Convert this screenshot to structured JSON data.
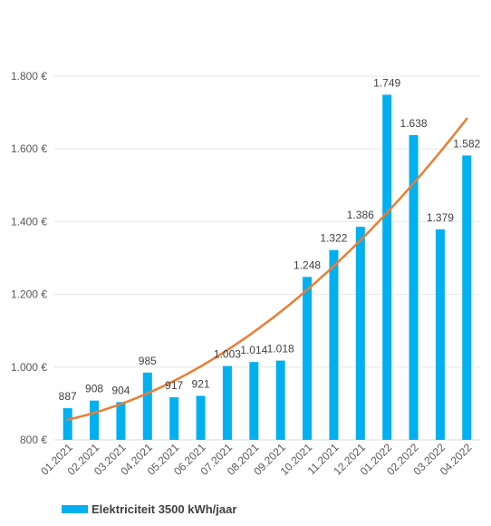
{
  "chart_data": {
    "type": "bar",
    "categories": [
      "01.2021",
      "02.2021",
      "03.2021",
      "04.2021",
      "05.2021",
      "06.2021",
      "07.2021",
      "08.2021",
      "09.2021",
      "10.2021",
      "11.2021",
      "12.2021",
      "01.2022",
      "02.2022",
      "03.2022",
      "04.2022"
    ],
    "series": [
      {
        "name": "Elektriciteit 3500 kWh/jaar",
        "color": "#00b0f0",
        "values": [
          887,
          908,
          904,
          985,
          917,
          921,
          1003,
          1014,
          1018,
          1248,
          1322,
          1386,
          1749,
          1638,
          1379,
          1582
        ],
        "labels": [
          "887",
          "908",
          "904",
          "985",
          "917",
          "921",
          "1.003",
          "1.014",
          "1.018",
          "1.248",
          "1.322",
          "1.386",
          "1.749",
          "1.638",
          "1.379",
          "1.582"
        ]
      }
    ],
    "trendline": {
      "type": "polynomial",
      "color": "#ed7d31"
    },
    "ylim": [
      800,
      1800
    ],
    "yticks": [
      800,
      1000,
      1200,
      1400,
      1600,
      1800
    ],
    "ytick_labels": [
      "800 €",
      "1.000 €",
      "1.200 €",
      "1.400 €",
      "1.600 €",
      "1.800 €"
    ],
    "grid": true,
    "legend": "bottom-left"
  }
}
